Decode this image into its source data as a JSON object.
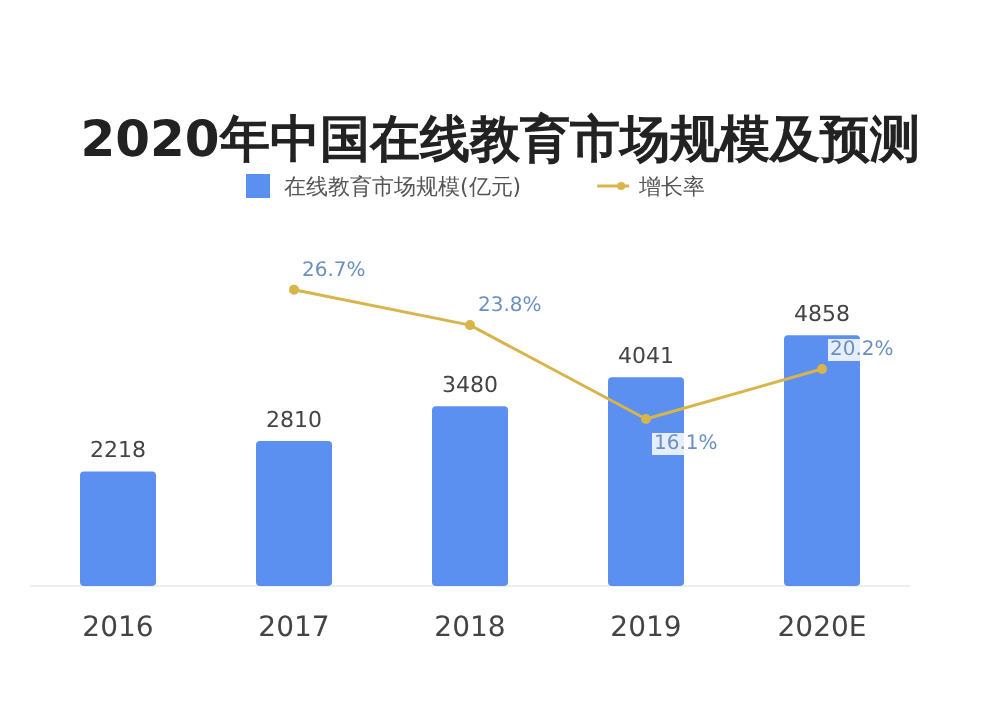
{
  "chart_data": {
    "type": "bar",
    "title": "2020年中国在线教育市场规模及预测",
    "categories": [
      "2016",
      "2017",
      "2018",
      "2019",
      "2020E"
    ],
    "series": [
      {
        "name": "在线教育市场规模(亿元)",
        "color": "#5b8ff0",
        "values": [
          2218,
          2810,
          3480,
          4041,
          4858
        ],
        "value_labels": [
          "2218",
          "2810",
          "3480",
          "4041",
          "4858"
        ]
      },
      {
        "name": "增长率",
        "type": "line",
        "axis": "y2",
        "color": "#d9b44a",
        "marker": "circle",
        "values": [
          null,
          26.7,
          23.8,
          16.1,
          20.2
        ],
        "value_labels": [
          null,
          "26.7%",
          "23.8%",
          "16.1%",
          "20.2%"
        ]
      }
    ],
    "legend": "top"
  }
}
